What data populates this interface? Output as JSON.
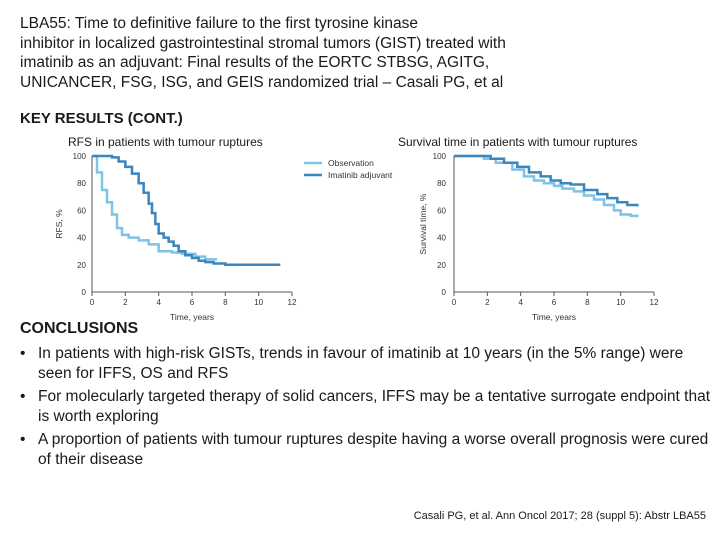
{
  "header": {
    "title": "LBA55: Time to definitive failure to the first tyrosine kinase\ninhibitor in localized gastrointestinal stromal tumors (GIST) treated with\nimatinib as an adjuvant: Final results of the EORTC STBSG, AGITG,\nUNICANCER, FSG, ISG, and GEIS randomized trial – Casali PG, et al",
    "section": "KEY RESULTS (CONT.)"
  },
  "colors": {
    "observation": "#7ec4e6",
    "imatinib": "#3a86bd",
    "axis": "#555555"
  },
  "chart_data": [
    {
      "type": "line",
      "title": "RFS in patients with tumour ruptures",
      "xlabel": "Time, years",
      "ylabel": "RFS, %",
      "xlim": [
        0,
        12
      ],
      "ylim": [
        0,
        100
      ],
      "xticks": [
        "0",
        "2",
        "4",
        "6",
        "8",
        "10",
        "12"
      ],
      "yticks": [
        "0",
        "20",
        "40",
        "60",
        "80",
        "100"
      ],
      "legend": [
        "Observation",
        "Imatinib adjuvant"
      ],
      "legend_position": "top-right",
      "series": [
        {
          "name": "Observation",
          "step": true,
          "points": [
            [
              0,
              100
            ],
            [
              0.3,
              88
            ],
            [
              0.6,
              75
            ],
            [
              0.9,
              66
            ],
            [
              1.2,
              57
            ],
            [
              1.5,
              47
            ],
            [
              1.8,
              42
            ],
            [
              2.2,
              40
            ],
            [
              2.8,
              38
            ],
            [
              3.4,
              35
            ],
            [
              4.0,
              30
            ],
            [
              4.8,
              29
            ],
            [
              5.4,
              28
            ],
            [
              6.2,
              26
            ],
            [
              6.8,
              24
            ],
            [
              7.5,
              24
            ]
          ]
        },
        {
          "name": "Imatinib adjuvant",
          "step": true,
          "points": [
            [
              0,
              100
            ],
            [
              1.2,
              99
            ],
            [
              1.6,
              96
            ],
            [
              2.0,
              92
            ],
            [
              2.4,
              87
            ],
            [
              2.8,
              80
            ],
            [
              3.1,
              73
            ],
            [
              3.4,
              65
            ],
            [
              3.6,
              58
            ],
            [
              3.8,
              50
            ],
            [
              4.0,
              43
            ],
            [
              4.3,
              40
            ],
            [
              4.6,
              37
            ],
            [
              4.9,
              34
            ],
            [
              5.2,
              30
            ],
            [
              5.6,
              27
            ],
            [
              6.0,
              25
            ],
            [
              6.4,
              23
            ],
            [
              6.8,
              22
            ],
            [
              7.3,
              21
            ],
            [
              8.0,
              20
            ],
            [
              9.5,
              20
            ],
            [
              11.3,
              20
            ]
          ]
        }
      ]
    },
    {
      "type": "line",
      "title": "Survival time in patients with tumour ruptures",
      "xlabel": "Time, years",
      "ylabel": "Survival time, %",
      "xlim": [
        0,
        12
      ],
      "ylim": [
        0,
        100
      ],
      "xticks": [
        "0",
        "2",
        "4",
        "6",
        "8",
        "10",
        "12"
      ],
      "yticks": [
        "0",
        "20",
        "40",
        "60",
        "80",
        "100"
      ],
      "series": [
        {
          "name": "Observation",
          "step": true,
          "points": [
            [
              0,
              100
            ],
            [
              1.8,
              98
            ],
            [
              2.5,
              95
            ],
            [
              3.5,
              90
            ],
            [
              4.2,
              85
            ],
            [
              4.8,
              82
            ],
            [
              5.4,
              80
            ],
            [
              6.0,
              78
            ],
            [
              6.5,
              76
            ],
            [
              7.2,
              74
            ],
            [
              7.8,
              71
            ],
            [
              8.4,
              68
            ],
            [
              9.0,
              64
            ],
            [
              9.6,
              60
            ],
            [
              10.0,
              57
            ],
            [
              10.6,
              56
            ],
            [
              11.0,
              55
            ]
          ]
        },
        {
          "name": "Imatinib adjuvant",
          "step": true,
          "points": [
            [
              0,
              100
            ],
            [
              2.2,
              98
            ],
            [
              3.0,
              95
            ],
            [
              3.8,
              92
            ],
            [
              4.5,
              88
            ],
            [
              5.2,
              85
            ],
            [
              5.8,
              82
            ],
            [
              6.4,
              80
            ],
            [
              7.0,
              79
            ],
            [
              7.8,
              75
            ],
            [
              8.6,
              72
            ],
            [
              9.2,
              69
            ],
            [
              9.8,
              66
            ],
            [
              10.4,
              64
            ],
            [
              11.0,
              63
            ]
          ]
        }
      ]
    }
  ],
  "conclusions": {
    "heading": "CONCLUSIONS",
    "bullets": [
      "In patients with high-risk GISTs, trends in favour of imatinib at 10 years (in the 5% range) were seen for IFFS, OS and RFS",
      "For molecularly targeted therapy of solid cancers, IFFS may be a tentative surrogate endpoint that is worth exploring",
      "A proportion of patients with tumour ruptures despite having a worse overall prognosis were cured of their disease"
    ]
  },
  "citation": "Casali PG, et al. Ann Oncol 2017; 28 (suppl 5): Abstr LBA55"
}
